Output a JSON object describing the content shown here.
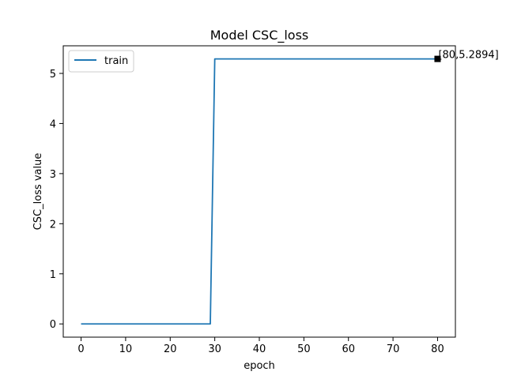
{
  "chart_data": {
    "type": "line",
    "title": "Model CSC_loss",
    "xlabel": "epoch",
    "ylabel": "CSC_loss value",
    "xlim": [
      -4,
      84
    ],
    "ylim": [
      -0.264,
      5.551
    ],
    "xticks": [
      0,
      10,
      20,
      30,
      40,
      50,
      60,
      70,
      80
    ],
    "yticks": [
      0,
      1,
      2,
      3,
      4,
      5
    ],
    "grid": false,
    "legend_position": "upper-left",
    "series": [
      {
        "name": "train",
        "color": "#1f77b4",
        "x": [
          0,
          29,
          30,
          80
        ],
        "y": [
          0,
          0,
          5.2894,
          5.2894
        ]
      }
    ],
    "annotations": [
      {
        "x": 80,
        "y": 5.2894,
        "text": "[80,5.2894]",
        "marker": "square",
        "marker_color": "#000000"
      }
    ]
  }
}
